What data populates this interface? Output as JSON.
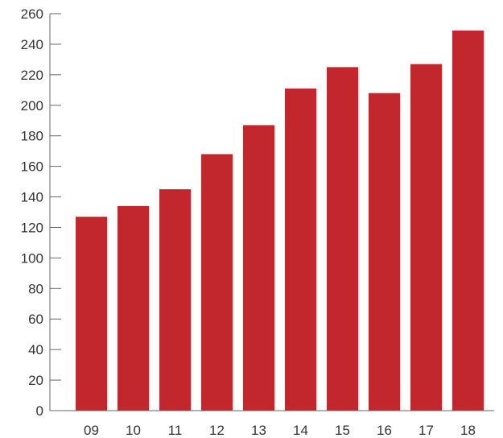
{
  "chart_data": {
    "type": "bar",
    "title": "",
    "xlabel": "",
    "ylabel": "",
    "categories": [
      "09",
      "10",
      "11",
      "12",
      "13",
      "14",
      "15",
      "16",
      "17",
      "18"
    ],
    "values": [
      127,
      134,
      145,
      168,
      187,
      211,
      225,
      208,
      227,
      249
    ],
    "ylim": [
      0,
      260
    ],
    "yticks": [
      "0",
      "20",
      "40",
      "60",
      "80",
      "100",
      "120",
      "140",
      "160",
      "180",
      "200",
      "220",
      "240",
      "260"
    ],
    "grid": false,
    "legend": "none",
    "bar_color": "#c1272d"
  }
}
